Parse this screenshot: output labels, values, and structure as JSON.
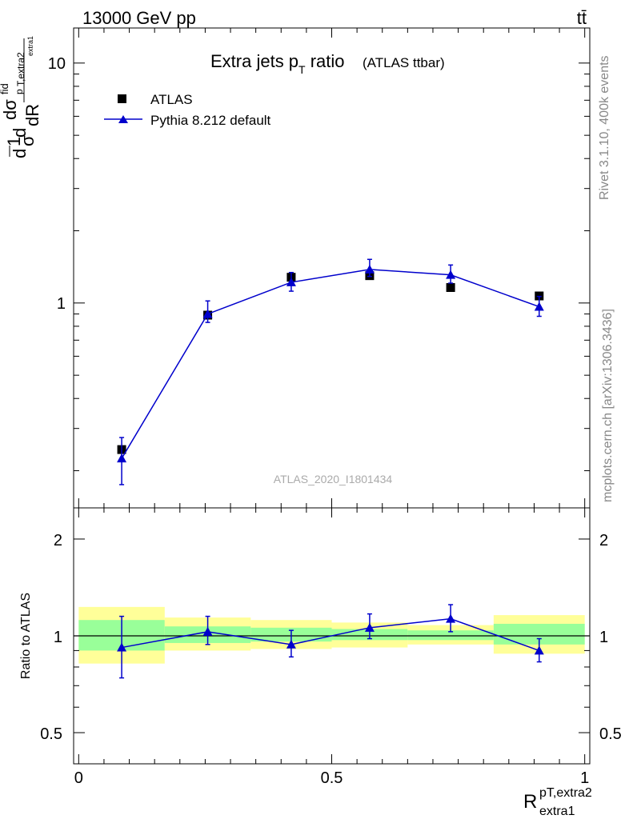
{
  "header": {
    "energy_label": "13000 GeV pp",
    "process_label": "tt̄"
  },
  "side_labels": {
    "rivet": "Rivet 3.1.10,  400k events",
    "mcplots": "mcplots.cern.ch [arXiv:1306.3436]"
  },
  "chart_data": [
    {
      "type": "line",
      "panel": "main",
      "title": "Extra jets p",
      "title_sub": "T",
      "title_rest": " ratio",
      "subtitle": "(ATLAS ttbar)",
      "analysis_id": "ATLAS_2020_I1801434",
      "y_scale": "log",
      "ylim": [
        0.14,
        14
      ],
      "xlim": [
        -0.01,
        1.01
      ],
      "yticks": [
        1,
        10
      ],
      "ytick_labels": [
        "1",
        "10"
      ],
      "ylabel_parts": {
        "a": "d",
        "b": "1",
        "c": "σ",
        "d": "d",
        "e": "dσ",
        "f": "fid",
        "g": "p",
        "h": "T,extra2",
        "i": "extra1",
        "j": "dR"
      },
      "legend": {
        "position": "top-left",
        "entries": [
          "ATLAS",
          "Pythia 8.212 default"
        ]
      },
      "series": [
        {
          "name": "ATLAS",
          "marker": "square",
          "color": "#000000",
          "x": [
            0.085,
            0.255,
            0.42,
            0.575,
            0.735,
            0.91
          ],
          "y": [
            0.245,
            0.89,
            1.28,
            1.3,
            1.16,
            1.07
          ],
          "xerr": [
            0.085,
            0.085,
            0.08,
            0.075,
            0.085,
            0.09
          ]
        },
        {
          "name": "Pythia 8.212 default",
          "marker": "triangle",
          "color": "#0000cc",
          "x": [
            0.085,
            0.255,
            0.42,
            0.575,
            0.735,
            0.91
          ],
          "y": [
            0.225,
            0.9,
            1.22,
            1.38,
            1.31,
            0.965
          ],
          "yerr_low": [
            0.05,
            0.07,
            0.1,
            0.09,
            0.1,
            0.085
          ],
          "yerr_high": [
            0.05,
            0.12,
            0.12,
            0.14,
            0.13,
            0.1
          ]
        }
      ]
    },
    {
      "type": "line",
      "panel": "ratio",
      "ylabel": "Ratio to ATLAS",
      "xlabel_main": "R",
      "xlabel_sup": "pT,extra2",
      "xlabel_sub": "extra1",
      "y_scale": "log",
      "ylim": [
        0.4,
        2.5
      ],
      "xlim": [
        -0.01,
        1.01
      ],
      "xticks": [
        0,
        0.5,
        1
      ],
      "xtick_labels": [
        "0",
        "0.5",
        "1"
      ],
      "yticks": [
        0.5,
        1,
        2
      ],
      "ytick_labels": [
        "0.5",
        "1",
        "2"
      ],
      "bands": [
        {
          "x0": 0.0,
          "x1": 0.17,
          "inner": [
            0.9,
            1.12
          ],
          "outer": [
            0.82,
            1.23
          ]
        },
        {
          "x0": 0.17,
          "x1": 0.34,
          "inner": [
            0.95,
            1.07
          ],
          "outer": [
            0.9,
            1.14
          ]
        },
        {
          "x0": 0.34,
          "x1": 0.5,
          "inner": [
            0.96,
            1.06
          ],
          "outer": [
            0.91,
            1.12
          ]
        },
        {
          "x0": 0.5,
          "x1": 0.65,
          "inner": [
            0.97,
            1.05
          ],
          "outer": [
            0.92,
            1.1
          ]
        },
        {
          "x0": 0.65,
          "x1": 0.82,
          "inner": [
            0.97,
            1.04
          ],
          "outer": [
            0.94,
            1.08
          ]
        },
        {
          "x0": 0.82,
          "x1": 1.0,
          "inner": [
            0.94,
            1.09
          ],
          "outer": [
            0.88,
            1.16
          ]
        }
      ],
      "series": [
        {
          "name": "Pythia 8.212 default",
          "marker": "triangle",
          "color": "#0000cc",
          "x": [
            0.085,
            0.255,
            0.42,
            0.575,
            0.735,
            0.91
          ],
          "y": [
            0.92,
            1.03,
            0.94,
            1.06,
            1.13,
            0.9
          ],
          "yerr_low": [
            0.18,
            0.09,
            0.08,
            0.08,
            0.1,
            0.07
          ],
          "yerr_high": [
            0.23,
            0.12,
            0.1,
            0.11,
            0.12,
            0.08
          ]
        }
      ],
      "colors": {
        "inner_band": "#99ff99",
        "outer_band": "#ffff99",
        "reference_line": "#000000"
      }
    }
  ]
}
